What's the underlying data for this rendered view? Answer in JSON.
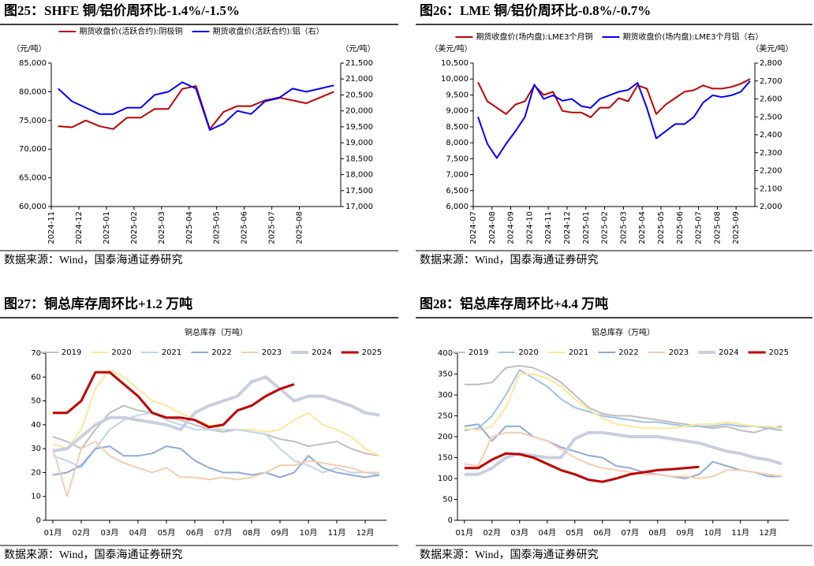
{
  "chart_data": [
    {
      "type": "line",
      "title": "图25：SHFE 铜/铝价周环比-1.4%/-1.5%",
      "source": "数据来源：Wind，国泰海通证券研究",
      "y_unit": "（元/吨）",
      "y2_unit": "（元/吨）",
      "categories": [
        "2024-11",
        null,
        "2024-12",
        null,
        "2025-01",
        null,
        "2025-02",
        null,
        "2025-03",
        null,
        "2025-04",
        null,
        "2025-05",
        null,
        "2025-06",
        null,
        "2025-07",
        null,
        "2025-08",
        null,
        null
      ],
      "series": [
        {
          "name": "期货收盘价(活跃合约):阴极铜",
          "color": "#c00000",
          "values": [
            74000,
            73800,
            75000,
            74000,
            73500,
            75500,
            75500,
            77000,
            77000,
            80500,
            81000,
            73500,
            76500,
            77500,
            77500,
            78500,
            79000,
            78500,
            78000,
            79000,
            80000
          ]
        },
        {
          "name": "期货收盘价(活跃合约):铝（右）",
          "color": "#0000ff",
          "axis": "y2",
          "values": [
            20700,
            20300,
            20100,
            19900,
            19900,
            20100,
            20100,
            20500,
            20600,
            20900,
            20700,
            19400,
            19600,
            20000,
            19900,
            20300,
            20400,
            20700,
            20600,
            20700,
            20800
          ]
        }
      ],
      "ylim": [
        60000,
        85000
      ],
      "yticks": [
        {
          "value": 60000,
          "label": "60,000"
        },
        {
          "value": 65000,
          "label": "65,000"
        },
        {
          "value": 70000,
          "label": "70,000"
        },
        {
          "value": 75000,
          "label": "75,000"
        },
        {
          "value": 80000,
          "label": "80,000"
        },
        {
          "value": 85000,
          "label": "85,000"
        }
      ],
      "y2lim": [
        17000,
        21500
      ],
      "y2ticks": [
        {
          "value": 17000,
          "label": "17,000"
        },
        {
          "value": 17500,
          "label": "17,500"
        },
        {
          "value": 18000,
          "label": "18,000"
        },
        {
          "value": 18500,
          "label": "18,500"
        },
        {
          "value": 19000,
          "label": "19,000"
        },
        {
          "value": 19500,
          "label": "19,500"
        },
        {
          "value": 20000,
          "label": "20,000"
        },
        {
          "value": 20500,
          "label": "20,500"
        },
        {
          "value": 21000,
          "label": "21,000"
        },
        {
          "value": 21500,
          "label": "21,500"
        }
      ],
      "grid": false
    },
    {
      "type": "line",
      "title": "图26：LME 铜/铝价周环比-0.8%/-0.7%",
      "source": "数据来源：Wind，国泰海通证券研究",
      "y_unit": "（美元/吨）",
      "y2_unit": "（美元/吨）",
      "categories": [
        "2024-07",
        null,
        "2024-08",
        null,
        "2024-09",
        null,
        "2024-10",
        null,
        "2024-11",
        null,
        "2024-12",
        null,
        "2025-01",
        null,
        "2025-02",
        null,
        "2025-03",
        null,
        "2025-04",
        null,
        "2025-05",
        null,
        "2025-06",
        null,
        "2025-07",
        null,
        "2025-08",
        null,
        "2025-09",
        null
      ],
      "series": [
        {
          "name": "期货收盘价(场内盘):LME3个月铜",
          "color": "#c00000",
          "values": [
            9900,
            9300,
            9100,
            8900,
            9200,
            9300,
            9800,
            9500,
            9600,
            9000,
            8950,
            8950,
            8800,
            9100,
            9100,
            9400,
            9300,
            9800,
            9700,
            8900,
            9200,
            9400,
            9600,
            9650,
            9800,
            9700,
            9700,
            9750,
            9850,
            10000
          ]
        },
        {
          "name": "期货收盘价(场内盘):LME3个月铝（右）",
          "color": "#0000ff",
          "axis": "y2",
          "values": [
            2500,
            2350,
            2270,
            2350,
            2420,
            2500,
            2680,
            2600,
            2620,
            2590,
            2600,
            2560,
            2550,
            2600,
            2620,
            2640,
            2650,
            2690,
            2550,
            2380,
            2420,
            2460,
            2460,
            2500,
            2580,
            2620,
            2610,
            2620,
            2640,
            2700
          ]
        }
      ],
      "ylim": [
        6000,
        10500
      ],
      "yticks": [
        {
          "value": 6000,
          "label": "6,000"
        },
        {
          "value": 6500,
          "label": "6,500"
        },
        {
          "value": 7000,
          "label": "7,000"
        },
        {
          "value": 7500,
          "label": "7,500"
        },
        {
          "value": 8000,
          "label": "8,000"
        },
        {
          "value": 8500,
          "label": "8,500"
        },
        {
          "value": 9000,
          "label": "9,000"
        },
        {
          "value": 9500,
          "label": "9,500"
        },
        {
          "value": 10000,
          "label": "10,000"
        },
        {
          "value": 10500,
          "label": "10,500"
        }
      ],
      "y2lim": [
        2000,
        2800
      ],
      "y2ticks": [
        {
          "value": 2000,
          "label": "2,000"
        },
        {
          "value": 2100,
          "label": "2,100"
        },
        {
          "value": 2200,
          "label": "2,200"
        },
        {
          "value": 2300,
          "label": "2,300"
        },
        {
          "value": 2400,
          "label": "2,400"
        },
        {
          "value": 2500,
          "label": "2,500"
        },
        {
          "value": 2600,
          "label": "2,600"
        },
        {
          "value": 2700,
          "label": "2,700"
        },
        {
          "value": 2800,
          "label": "2,800"
        }
      ],
      "grid": false
    },
    {
      "type": "line",
      "title": "图27：铜总库存周环比+1.2 万吨",
      "subtitle": "铜总库存（万吨）",
      "source": "数据来源：Wind，国泰海通证券研究",
      "categories": [
        "01月",
        null,
        "02月",
        null,
        "03月",
        null,
        "04月",
        null,
        "05月",
        null,
        "06月",
        null,
        "07月",
        null,
        "08月",
        null,
        "09月",
        null,
        "10月",
        null,
        "11月",
        null,
        "12月",
        null
      ],
      "series": [
        {
          "name": "2019",
          "color": "#bfbfbf",
          "linewidth": 2,
          "values": [
            35,
            33,
            30,
            38,
            45,
            48,
            46,
            45,
            43,
            42,
            40,
            38,
            37,
            38,
            37,
            36,
            34,
            33,
            31,
            32,
            33,
            30,
            28,
            27
          ]
        },
        {
          "name": "2020",
          "color": "#ffe699",
          "linewidth": 2,
          "values": [
            32,
            30,
            38,
            55,
            63,
            60,
            55,
            50,
            48,
            45,
            42,
            40,
            38,
            38,
            38,
            37,
            38,
            42,
            45,
            40,
            38,
            35,
            30,
            27
          ]
        },
        {
          "name": "2021",
          "color": "#bdd7ee",
          "linewidth": 2,
          "values": [
            27,
            25,
            22,
            30,
            38,
            42,
            44,
            45,
            42,
            40,
            38,
            38,
            38,
            38,
            37,
            36,
            30,
            25,
            23,
            20,
            22,
            20,
            20,
            19
          ]
        },
        {
          "name": "2022",
          "color": "#8faadc",
          "linewidth": 2,
          "values": [
            19,
            20,
            23,
            30,
            31,
            27,
            27,
            28,
            31,
            30,
            25,
            22,
            20,
            20,
            19,
            20,
            18,
            20,
            27,
            22,
            20,
            19,
            18,
            19
          ]
        },
        {
          "name": "2023",
          "color": "#f8cbad",
          "linewidth": 2,
          "values": [
            30,
            10,
            30,
            33,
            27,
            24,
            22,
            20,
            22,
            18,
            18,
            17,
            18,
            17,
            18,
            20,
            23,
            23,
            25,
            24,
            23,
            22,
            20,
            20
          ]
        },
        {
          "name": "2024",
          "color": "#c9cfe0",
          "linewidth": 4,
          "values": [
            29,
            30,
            35,
            40,
            43,
            43,
            42,
            41,
            40,
            38,
            45,
            48,
            50,
            52,
            58,
            60,
            55,
            50,
            52,
            52,
            50,
            48,
            45,
            44
          ]
        },
        {
          "name": "2025",
          "color": "#c00000",
          "linewidth": 3,
          "values": [
            45,
            45,
            50,
            62,
            62,
            57,
            52,
            45,
            43,
            43,
            42,
            39,
            40,
            46,
            48,
            52,
            55,
            57,
            null,
            null,
            null,
            null,
            null,
            null
          ]
        }
      ],
      "ylim": [
        0,
        70
      ],
      "yticks": [
        0,
        10,
        20,
        30,
        40,
        50,
        60,
        70
      ],
      "grid": false
    },
    {
      "type": "line",
      "title": "图28：铝总库存周环比+4.4 万吨",
      "subtitle": "铝总库存（万吨）",
      "source": "数据来源：Wind，国泰海通证券研究",
      "categories": [
        "01月",
        null,
        "02月",
        null,
        "03月",
        null,
        "04月",
        null,
        "05月",
        null,
        "06月",
        null,
        "07月",
        null,
        "08月",
        null,
        "09月",
        null,
        "10月",
        null,
        "11月",
        null,
        "12月",
        null
      ],
      "series": [
        {
          "name": "2019",
          "color": "#bfbfbf",
          "linewidth": 2,
          "values": [
            325,
            325,
            330,
            365,
            370,
            365,
            350,
            330,
            300,
            270,
            255,
            250,
            250,
            245,
            240,
            235,
            230,
            225,
            220,
            225,
            215,
            210,
            220,
            225
          ]
        },
        {
          "name": "2020",
          "color": "#9dc3e6",
          "linewidth": 2,
          "values": [
            215,
            220,
            250,
            300,
            360,
            340,
            320,
            290,
            270,
            260,
            250,
            245,
            240,
            235,
            235,
            230,
            225,
            225,
            225,
            230,
            225,
            225,
            220,
            215
          ]
        },
        {
          "name": "2021",
          "color": "#ffe699",
          "linewidth": 2,
          "values": [
            220,
            215,
            225,
            270,
            350,
            350,
            340,
            320,
            290,
            265,
            245,
            230,
            225,
            220,
            220,
            220,
            225,
            230,
            230,
            235,
            230,
            225,
            225,
            220
          ]
        },
        {
          "name": "2022",
          "color": "#8faadc",
          "linewidth": 2,
          "values": [
            225,
            230,
            190,
            225,
            225,
            200,
            190,
            175,
            165,
            155,
            150,
            130,
            125,
            115,
            110,
            105,
            100,
            110,
            140,
            130,
            120,
            115,
            105,
            105
          ]
        },
        {
          "name": "2023",
          "color": "#f8cbad",
          "linewidth": 2,
          "values": [
            135,
            130,
            200,
            210,
            210,
            200,
            190,
            170,
            150,
            135,
            125,
            120,
            115,
            110,
            110,
            105,
            105,
            100,
            105,
            120,
            120,
            115,
            110,
            105
          ]
        },
        {
          "name": "2024",
          "color": "#c9cfe0",
          "linewidth": 4,
          "values": [
            110,
            110,
            125,
            150,
            160,
            155,
            150,
            150,
            195,
            210,
            210,
            205,
            200,
            200,
            200,
            195,
            190,
            185,
            175,
            165,
            160,
            150,
            145,
            135
          ]
        },
        {
          "name": "2025",
          "color": "#c00000",
          "linewidth": 3,
          "values": [
            125,
            125,
            145,
            160,
            158,
            150,
            135,
            120,
            110,
            97,
            92,
            100,
            110,
            115,
            120,
            122,
            125,
            128,
            null,
            null,
            null,
            null,
            null,
            null
          ]
        }
      ],
      "ylim": [
        0,
        400
      ],
      "yticks": [
        0,
        50,
        100,
        150,
        200,
        250,
        300,
        350,
        400
      ],
      "grid": false
    }
  ]
}
